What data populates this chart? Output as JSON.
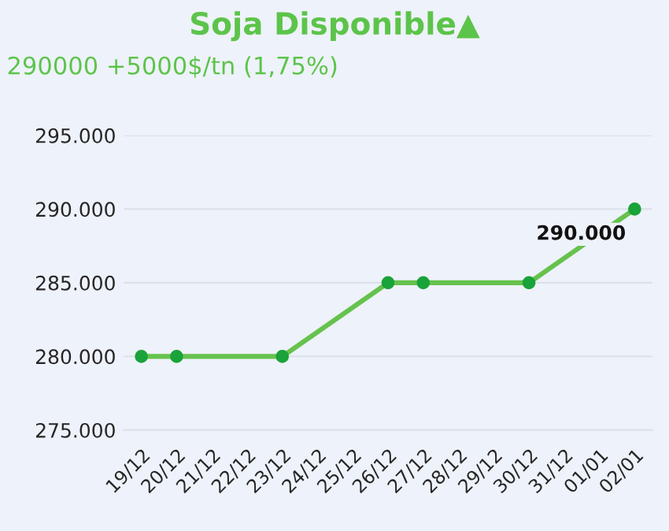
{
  "chart_data": {
    "type": "line",
    "title": "Soja Disponible▲",
    "subtitle": "290000 +5000$/tn (1,75%)",
    "categories": [
      "19/12",
      "20/12",
      "21/12",
      "22/12",
      "23/12",
      "24/12",
      "25/12",
      "26/12",
      "27/12",
      "28/12",
      "29/12",
      "30/12",
      "31/12",
      "01/01",
      "02/01"
    ],
    "series": [
      {
        "color": "#66c24d",
        "values": [
          280000,
          280000,
          null,
          null,
          280000,
          null,
          null,
          285000,
          285000,
          null,
          null,
          285000,
          null,
          null,
          290000
        ],
        "value_labels": [
          null,
          null,
          null,
          null,
          null,
          null,
          null,
          null,
          null,
          null,
          null,
          null,
          null,
          null,
          "290.000"
        ]
      }
    ],
    "ylim": [
      275000,
      295000
    ],
    "yticks": [
      {
        "value": 275000,
        "label": "275.000"
      },
      {
        "value": 280000,
        "label": "280.000"
      },
      {
        "value": 285000,
        "label": "285.000"
      },
      {
        "value": 290000,
        "label": "290.000"
      },
      {
        "value": 295000,
        "label": "295.000"
      }
    ],
    "grid": "y",
    "marker": "circle",
    "line_style": "solid",
    "legend": false
  }
}
